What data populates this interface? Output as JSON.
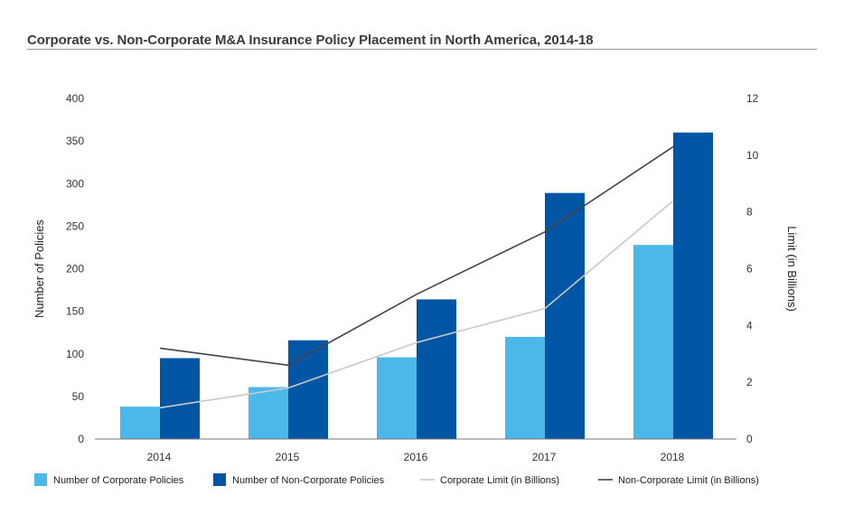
{
  "chart_data": {
    "type": "bar",
    "title": "Corporate vs. Non-Corporate M&A Insurance Policy Placement in North America, 2014-18",
    "categories": [
      "2014",
      "2015",
      "2016",
      "2017",
      "2018"
    ],
    "series": [
      {
        "name": "Number of Corporate Policies",
        "kind": "bar",
        "axis": "left",
        "color": "#4cb8ea",
        "values": [
          38,
          61,
          96,
          120,
          228
        ]
      },
      {
        "name": "Number of Non-Corporate Policies",
        "kind": "bar",
        "axis": "left",
        "color": "#0055a5",
        "values": [
          95,
          116,
          164,
          289,
          360
        ]
      },
      {
        "name": "Corporate Limit (in Billions)",
        "kind": "line",
        "axis": "right",
        "color": "#c9c9c9",
        "values": [
          1.1,
          1.8,
          3.4,
          4.6,
          8.4
        ]
      },
      {
        "name": "Non-Corporate Limit (in Billions)",
        "kind": "line",
        "axis": "right",
        "color": "#444444",
        "values": [
          3.2,
          2.6,
          5.1,
          7.3,
          10.3
        ]
      }
    ],
    "ylabel": "Number of Policies",
    "ylim": [
      0,
      400
    ],
    "yticks": [
      "0",
      "50",
      "100",
      "150",
      "200",
      "250",
      "300",
      "350",
      "400"
    ],
    "y2label": "Limit (in Billions)",
    "y2lim": [
      0,
      12
    ],
    "y2ticks": [
      "0",
      "2",
      "4",
      "6",
      "8",
      "10",
      "12"
    ],
    "legend_position": "bottom"
  }
}
